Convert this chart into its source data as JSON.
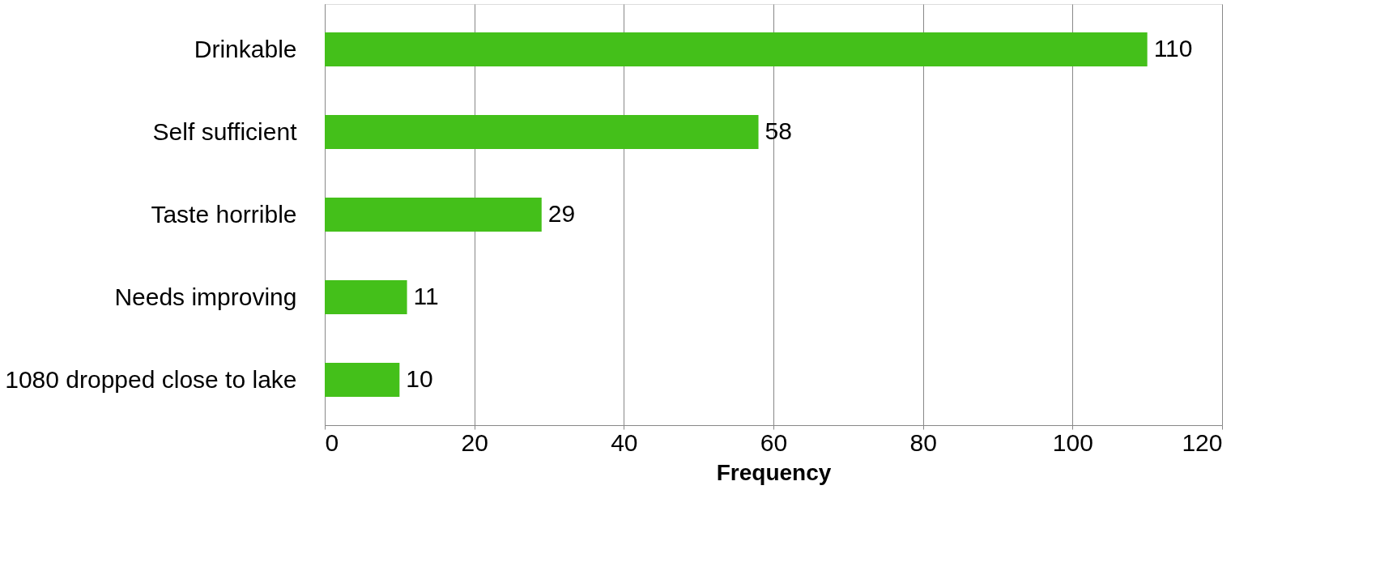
{
  "chart_data": {
    "type": "bar",
    "orientation": "horizontal",
    "xlabel": "Frequency",
    "categories": [
      "Drinkable",
      "Self sufficient",
      "Taste horrible",
      "Needs improving",
      "1080 dropped close to lake"
    ],
    "values": [
      110,
      58,
      29,
      11,
      10
    ],
    "color": "#44c01a",
    "xlim": [
      0,
      120
    ],
    "xticks": [
      0,
      20,
      40,
      60,
      80,
      100,
      120
    ],
    "grid": "x",
    "data_labels": true
  }
}
